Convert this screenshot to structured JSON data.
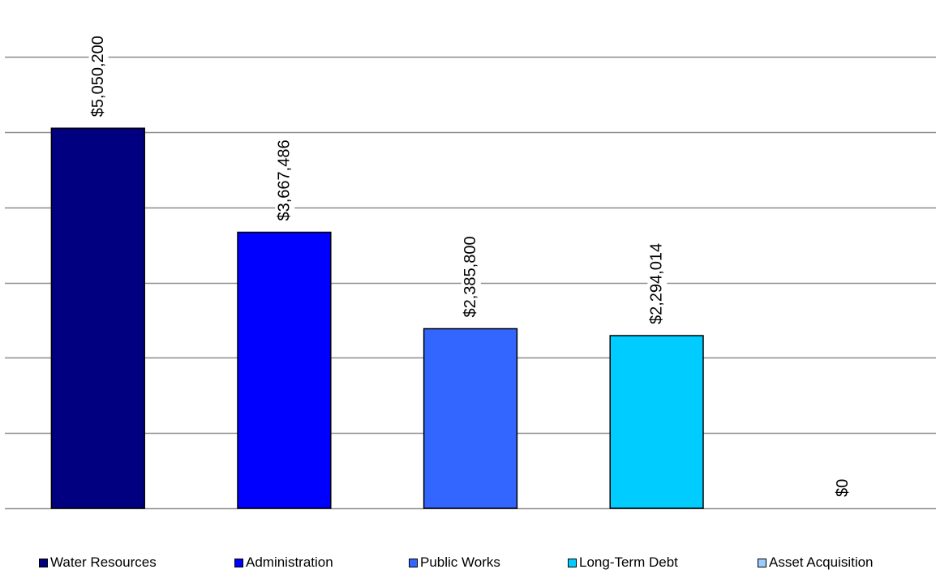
{
  "chart_data": {
    "type": "bar",
    "categories": [
      "Water Resources",
      "Administration",
      "Public Works",
      "Long-Term Debt",
      "Asset Acquisition"
    ],
    "values": [
      5050200,
      3667486,
      2385800,
      2294014,
      0
    ],
    "data_labels": [
      "$5,050,200",
      "$3,667,486",
      "$2,385,800",
      "$2,294,014",
      "$0"
    ],
    "colors": [
      "#000080",
      "#0000FF",
      "#3366FF",
      "#00CCFF",
      "#99CCFF"
    ],
    "ylim": [
      0,
      6000000
    ],
    "y_gridline_step": 1000000,
    "grid": true,
    "y_tick_labels_shown": false,
    "legend_position": "bottom",
    "title": "",
    "xlabel": "",
    "ylabel": ""
  }
}
